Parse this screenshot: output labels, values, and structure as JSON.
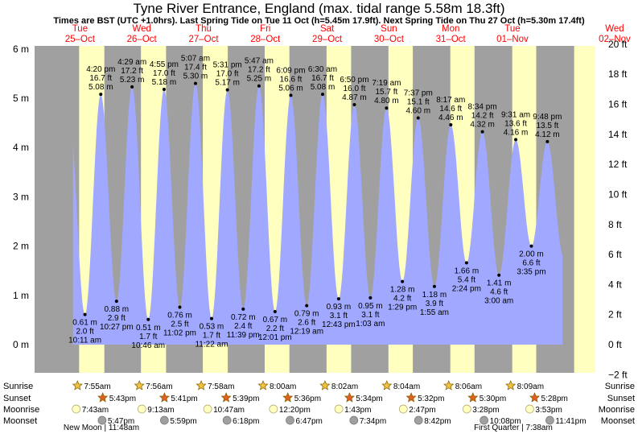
{
  "title": "Tyne River Entrance, England (max. tidal range 5.58m 18.3ft)",
  "subtitle": "Times are BST (UTC +1.0hrs). Last Spring Tide on Tue 11 Oct (h=5.45m 17.9ft). Next Spring Tide on Thu 27 Oct (h=5.30m 17.4ft)",
  "colors": {
    "night": "#a0a0a0",
    "day": "#ffffc0",
    "water": "#a0a8ff",
    "date_text": "#ff0000",
    "sun": "#f0c040",
    "sunset": "#e06020",
    "moonrise": "#ffffc0",
    "moonset": "#a0a0a0"
  },
  "chart_data": {
    "type": "area",
    "y_left_unit": "m",
    "y_right_unit": "ft",
    "y_left_ticks": [
      "6 m",
      "5 m",
      "4 m",
      "3 m",
      "2 m",
      "1 m",
      "0 m"
    ],
    "y_right_ticks": [
      "20 ft",
      "18 ft",
      "16 ft",
      "14 ft",
      "12 ft",
      "10 ft",
      "8 ft",
      "6 ft",
      "4 ft",
      "2 ft",
      "0 ft",
      "−2 ft"
    ],
    "ylim_m": [
      -0.61,
      6.1
    ],
    "days": [
      {
        "dow": "Tue",
        "date": "25–Oct"
      },
      {
        "dow": "Wed",
        "date": "26–Oct"
      },
      {
        "dow": "Thu",
        "date": "27–Oct"
      },
      {
        "dow": "Fri",
        "date": "28–Oct"
      },
      {
        "dow": "Sat",
        "date": "29–Oct"
      },
      {
        "dow": "Sun",
        "date": "30–Oct"
      },
      {
        "dow": "Mon",
        "date": "31–Oct"
      },
      {
        "dow": "Tue",
        "date": "01–Nov"
      },
      {
        "dow": "Wed",
        "date": "02–Nov"
      }
    ],
    "tides": [
      {
        "type": "low",
        "day": 0,
        "time": "10:11 am",
        "h_m": 0.61,
        "m": "0.61 m",
        "ft": "2.0 ft"
      },
      {
        "type": "high",
        "day": 0,
        "time": "4:20 pm",
        "h_m": 5.08,
        "m": "5.08 m",
        "ft": "16.7 ft"
      },
      {
        "type": "low",
        "day": 0,
        "time": "10:27 pm",
        "h_m": 0.88,
        "m": "0.88 m",
        "ft": "2.9 ft"
      },
      {
        "type": "high",
        "day": 1,
        "time": "4:29 am",
        "h_m": 5.23,
        "m": "5.23 m",
        "ft": "17.2 ft"
      },
      {
        "type": "low",
        "day": 1,
        "time": "10:46 am",
        "h_m": 0.51,
        "m": "0.51 m",
        "ft": "1.7 ft"
      },
      {
        "type": "high",
        "day": 1,
        "time": "4:55 pm",
        "h_m": 5.18,
        "m": "5.18 m",
        "ft": "17.0 ft"
      },
      {
        "type": "low",
        "day": 1,
        "time": "11:02 pm",
        "h_m": 0.76,
        "m": "0.76 m",
        "ft": "2.5 ft"
      },
      {
        "type": "high",
        "day": 2,
        "time": "5:07 am",
        "h_m": 5.3,
        "m": "5.30 m",
        "ft": "17.4 ft"
      },
      {
        "type": "low",
        "day": 2,
        "time": "11:22 am",
        "h_m": 0.53,
        "m": "0.53 m",
        "ft": "1.7 ft"
      },
      {
        "type": "high",
        "day": 2,
        "time": "5:31 pm",
        "h_m": 5.17,
        "m": "5.17 m",
        "ft": "17.0 ft"
      },
      {
        "type": "low",
        "day": 2,
        "time": "11:39 pm",
        "h_m": 0.72,
        "m": "0.72 m",
        "ft": "2.4 ft"
      },
      {
        "type": "high",
        "day": 3,
        "time": "5:47 am",
        "h_m": 5.25,
        "m": "5.25 m",
        "ft": "17.2 ft"
      },
      {
        "type": "low",
        "day": 3,
        "time": "12:01 pm",
        "h_m": 0.67,
        "m": "0.67 m",
        "ft": "2.2 ft"
      },
      {
        "type": "high",
        "day": 3,
        "time": "6:09 pm",
        "h_m": 5.06,
        "m": "5.06 m",
        "ft": "16.6 ft"
      },
      {
        "type": "low",
        "day": 4,
        "time": "12:19 am",
        "h_m": 0.79,
        "m": "0.79 m",
        "ft": "2.6 ft"
      },
      {
        "type": "high",
        "day": 4,
        "time": "6:30 am",
        "h_m": 5.08,
        "m": "5.08 m",
        "ft": "16.7 ft"
      },
      {
        "type": "low",
        "day": 4,
        "time": "12:43 pm",
        "h_m": 0.93,
        "m": "0.93 m",
        "ft": "3.1 ft"
      },
      {
        "type": "high",
        "day": 4,
        "time": "6:50 pm",
        "h_m": 4.87,
        "m": "4.87 m",
        "ft": "16.0 ft"
      },
      {
        "type": "low",
        "day": 5,
        "time": "1:03 am",
        "h_m": 0.95,
        "m": "0.95 m",
        "ft": "3.1 ft"
      },
      {
        "type": "high",
        "day": 5,
        "time": "7:19 am",
        "h_m": 4.8,
        "m": "4.80 m",
        "ft": "15.7 ft"
      },
      {
        "type": "low",
        "day": 5,
        "time": "1:29 pm",
        "h_m": 1.28,
        "m": "1.28 m",
        "ft": "4.2 ft"
      },
      {
        "type": "high",
        "day": 5,
        "time": "7:37 pm",
        "h_m": 4.6,
        "m": "4.60 m",
        "ft": "15.1 ft"
      },
      {
        "type": "low",
        "day": 6,
        "time": "1:55 am",
        "h_m": 1.18,
        "m": "1.18 m",
        "ft": "3.9 ft"
      },
      {
        "type": "high",
        "day": 6,
        "time": "8:17 am",
        "h_m": 4.46,
        "m": "4.46 m",
        "ft": "14.6 ft"
      },
      {
        "type": "low",
        "day": 6,
        "time": "2:24 pm",
        "h_m": 1.66,
        "m": "1.66 m",
        "ft": "5.4 ft"
      },
      {
        "type": "high",
        "day": 6,
        "time": "8:34 pm",
        "h_m": 4.32,
        "m": "4.32 m",
        "ft": "14.2 ft"
      },
      {
        "type": "low",
        "day": 7,
        "time": "3:00 am",
        "h_m": 1.41,
        "m": "1.41 m",
        "ft": "4.6 ft"
      },
      {
        "type": "high",
        "day": 7,
        "time": "9:31 am",
        "h_m": 4.16,
        "m": "4.16 m",
        "ft": "13.6 ft"
      },
      {
        "type": "low",
        "day": 7,
        "time": "3:35 pm",
        "h_m": 2.0,
        "m": "2.00 m",
        "ft": "6.6 ft"
      },
      {
        "type": "high",
        "day": 7,
        "time": "9:48 pm",
        "h_m": 4.12,
        "m": "4.12 m",
        "ft": "13.5 ft"
      }
    ],
    "sun": [
      {
        "day": 0,
        "rise": "7:55am",
        "set": "5:43pm"
      },
      {
        "day": 1,
        "rise": "7:56am",
        "set": "5:41pm"
      },
      {
        "day": 2,
        "rise": "7:58am",
        "set": "5:39pm"
      },
      {
        "day": 3,
        "rise": "8:00am",
        "set": "5:36pm"
      },
      {
        "day": 4,
        "rise": "8:02am",
        "set": "5:34pm"
      },
      {
        "day": 5,
        "rise": "8:04am",
        "set": "5:32pm"
      },
      {
        "day": 6,
        "rise": "8:06am",
        "set": "5:30pm"
      },
      {
        "day": 7,
        "rise": "8:09am",
        "set": "5:28pm"
      }
    ],
    "moon": [
      {
        "day": 0,
        "rise": "7:43am",
        "set": "5:47pm"
      },
      {
        "day": 1,
        "rise": "9:13am",
        "set": "5:59pm"
      },
      {
        "day": 2,
        "rise": "10:47am",
        "set": "6:18pm"
      },
      {
        "day": 3,
        "rise": "12:20pm",
        "set": "6:47pm"
      },
      {
        "day": 4,
        "rise": "1:43pm",
        "set": "7:34pm"
      },
      {
        "day": 5,
        "rise": "2:47pm",
        "set": "8:42pm"
      },
      {
        "day": 6,
        "rise": "3:28pm",
        "set": "10:08pm"
      },
      {
        "day": 7,
        "rise": "3:53pm",
        "set": "11:41pm"
      }
    ],
    "moon_phases": [
      {
        "day": 0,
        "text": "New Moon | 11:48am"
      },
      {
        "day": 7,
        "text": "First Quarter | 7:38am"
      }
    ],
    "row_labels": [
      "Sunrise",
      "Sunset",
      "Moonrise",
      "Moonset"
    ]
  }
}
